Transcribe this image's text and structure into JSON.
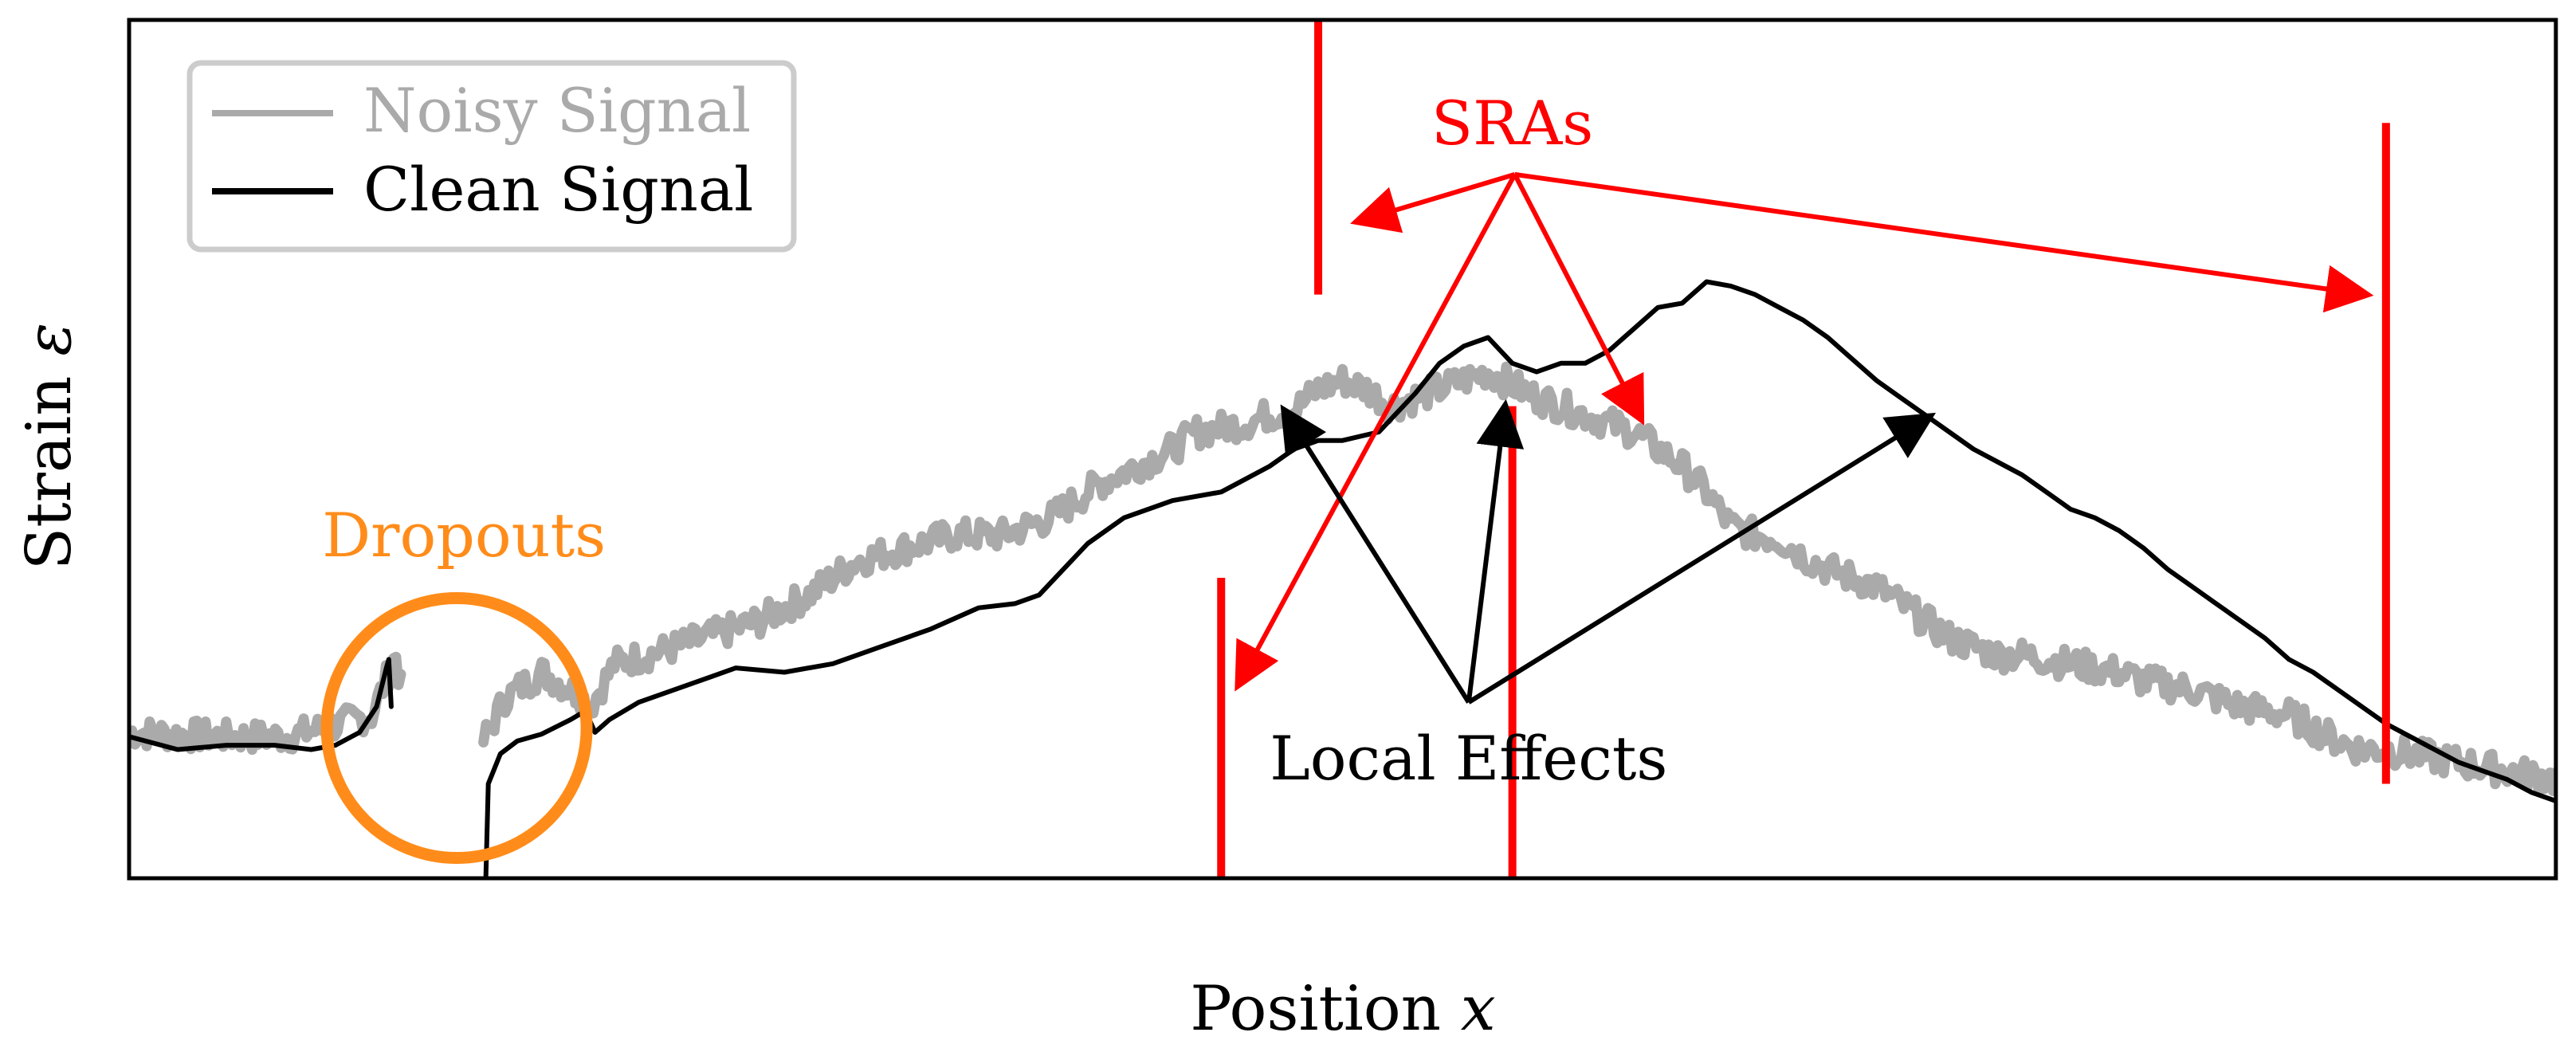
{
  "chart_data": {
    "type": "line",
    "title": "",
    "xlabel_main": "Position",
    "xlabel_var": "x",
    "ylabel_main": "Strain",
    "ylabel_var": "ε",
    "xlim": [
      0,
      100
    ],
    "ylim": [
      0,
      100
    ],
    "grid": false,
    "legend_position": "top-left",
    "series": [
      {
        "name": "Noisy Signal",
        "color": "#aaaaaa",
        "points": [
          [
            0,
            17
          ],
          [
            4,
            16.5
          ],
          [
            6.5,
            16.5
          ],
          [
            8,
            17.5
          ],
          [
            10,
            19
          ],
          [
            10.7,
            24
          ],
          [
            11,
            26
          ],
          [
            11.2,
            22
          ]
        ],
        "points_after_dropout": [
          [
            14.6,
            16
          ],
          [
            15.5,
            21
          ],
          [
            17,
            24
          ],
          [
            18.5,
            21.5
          ],
          [
            19,
            20
          ],
          [
            20,
            25
          ],
          [
            22,
            26.5
          ],
          [
            26,
            30
          ],
          [
            28,
            33
          ],
          [
            30,
            37
          ],
          [
            34,
            40
          ],
          [
            36,
            40
          ],
          [
            38,
            42
          ],
          [
            40,
            46
          ],
          [
            43,
            50
          ],
          [
            44,
            52
          ],
          [
            45,
            52.5
          ],
          [
            46,
            53
          ],
          [
            47,
            54
          ],
          [
            48,
            54.5
          ],
          [
            49,
            57
          ],
          [
            50,
            58
          ],
          [
            51,
            57
          ],
          [
            52,
            55
          ],
          [
            53,
            56
          ],
          [
            54,
            57
          ],
          [
            55,
            58
          ],
          [
            56,
            59
          ],
          [
            57,
            57.5
          ],
          [
            58,
            56
          ],
          [
            59,
            55
          ],
          [
            60,
            54
          ],
          [
            61,
            53
          ],
          [
            62,
            52
          ],
          [
            63,
            50
          ],
          [
            64,
            48
          ],
          [
            65,
            45
          ],
          [
            66,
            41
          ],
          [
            67,
            40
          ],
          [
            68,
            39.5
          ],
          [
            69,
            37.5
          ],
          [
            70,
            36
          ],
          [
            71,
            35
          ],
          [
            72,
            34
          ],
          [
            73,
            32
          ],
          [
            74,
            30
          ],
          [
            75,
            28
          ],
          [
            76,
            27
          ],
          [
            77,
            26
          ],
          [
            78,
            26
          ],
          [
            79,
            25.5
          ],
          [
            80,
            25
          ],
          [
            81,
            24.5
          ],
          [
            82,
            24
          ],
          [
            83,
            23
          ],
          [
            84,
            22.5
          ],
          [
            85,
            22
          ],
          [
            86,
            21
          ],
          [
            87,
            20
          ],
          [
            88,
            19.5
          ],
          [
            89,
            19
          ],
          [
            90,
            17.5
          ],
          [
            91,
            16
          ],
          [
            92,
            15
          ],
          [
            93,
            15
          ],
          [
            94,
            14.5
          ],
          [
            95,
            14
          ],
          [
            96,
            13.5
          ],
          [
            97,
            13
          ],
          [
            98,
            12.5
          ],
          [
            100,
            11.5
          ]
        ]
      },
      {
        "name": "Clean Signal",
        "color": "#000000",
        "points": [
          [
            0,
            16.5
          ],
          [
            2,
            15
          ],
          [
            4,
            15.5
          ],
          [
            6,
            15.5
          ],
          [
            7.5,
            15
          ],
          [
            8.5,
            15.5
          ],
          [
            9.5,
            17
          ],
          [
            10.2,
            20
          ],
          [
            10.6,
            24.5
          ],
          [
            10.7,
            25.5
          ],
          [
            10.8,
            20
          ]
        ],
        "points_after_dropout": [
          [
            14.7,
            0
          ],
          [
            14.8,
            11
          ],
          [
            15.3,
            14.5
          ],
          [
            16,
            16
          ],
          [
            17,
            16.8
          ],
          [
            18.2,
            18.5
          ],
          [
            18.8,
            19.5
          ],
          [
            19.2,
            17
          ],
          [
            19.8,
            18.5
          ],
          [
            21,
            20.5
          ],
          [
            23,
            22.5
          ],
          [
            25,
            24.5
          ],
          [
            27,
            24
          ],
          [
            29,
            25
          ],
          [
            31,
            27
          ],
          [
            33,
            29
          ],
          [
            35,
            31.5
          ],
          [
            36.5,
            32
          ],
          [
            37.5,
            33
          ],
          [
            38.5,
            36
          ],
          [
            39.5,
            39
          ],
          [
            41,
            42
          ],
          [
            43,
            44
          ],
          [
            45,
            45
          ],
          [
            46,
            46.5
          ],
          [
            47,
            48
          ],
          [
            48,
            50
          ],
          [
            49,
            51
          ],
          [
            50,
            51
          ],
          [
            51.5,
            52
          ],
          [
            53,
            56.5
          ],
          [
            54,
            60
          ],
          [
            55,
            62
          ],
          [
            56,
            63
          ],
          [
            57,
            60
          ],
          [
            58,
            59
          ],
          [
            59,
            60
          ],
          [
            60,
            60
          ],
          [
            61,
            61.5
          ],
          [
            62,
            64
          ],
          [
            63,
            66.5
          ],
          [
            64,
            67
          ],
          [
            65,
            69.5
          ],
          [
            66,
            69
          ],
          [
            67,
            68
          ],
          [
            68,
            66.5
          ],
          [
            69,
            65
          ],
          [
            70,
            63
          ],
          [
            71,
            60.5
          ],
          [
            72,
            58
          ],
          [
            73,
            56
          ],
          [
            74,
            54
          ],
          [
            75,
            52
          ],
          [
            76,
            50
          ],
          [
            77,
            48.5
          ],
          [
            78,
            47
          ],
          [
            79,
            45
          ],
          [
            80,
            43
          ],
          [
            81,
            42
          ],
          [
            82,
            40.5
          ],
          [
            83,
            38.5
          ],
          [
            84,
            36
          ],
          [
            85,
            34
          ],
          [
            86,
            32
          ],
          [
            87,
            30
          ],
          [
            88,
            28
          ],
          [
            89,
            25.5
          ],
          [
            90,
            24
          ],
          [
            91,
            22
          ],
          [
            92,
            20
          ],
          [
            93,
            18
          ],
          [
            94,
            16.5
          ],
          [
            95,
            15
          ],
          [
            96,
            13.5
          ],
          [
            97,
            12.5
          ],
          [
            98,
            11.5
          ],
          [
            99,
            10
          ],
          [
            100,
            9
          ]
        ]
      }
    ],
    "sra_spikes": [
      {
        "x": 49,
        "y_from": 68,
        "y_to": 100,
        "color": "#ff0000"
      },
      {
        "x": 45,
        "y_from": 0,
        "y_to": 35,
        "color": "#ff0000"
      },
      {
        "x": 57,
        "y_from": 0,
        "y_to": 55,
        "color": "#ff0000"
      },
      {
        "x": 93,
        "y_from": 11,
        "y_to": 88,
        "color": "#ff0000"
      }
    ],
    "annotations": {
      "sras": {
        "text": "SRAs",
        "color": "#ff0000"
      },
      "local_effects": {
        "text": "Local Effects",
        "color": "#000000"
      },
      "dropouts": {
        "text": "Dropouts",
        "color": "#ff8c1a"
      }
    }
  }
}
